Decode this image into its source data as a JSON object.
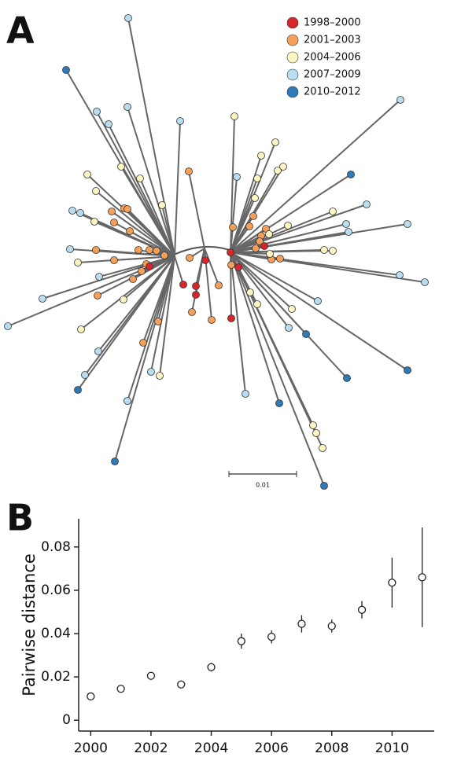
{
  "panel_a": {
    "label": "A",
    "legend": [
      {
        "name": "1998–2000",
        "color": "#d7262b"
      },
      {
        "name": "2001–2003",
        "color": "#f5a05a"
      },
      {
        "name": "2004–2006",
        "color": "#fdf6c3"
      },
      {
        "name": "2007–2009",
        "color": "#b8ddf0"
      },
      {
        "name": "2010–2012",
        "color": "#2f79b7"
      }
    ],
    "scale_label": "0.01"
  },
  "chart_data": {
    "type": "scatter",
    "label": "B",
    "y_label": "Pairwise distance",
    "x": [
      2000,
      2001,
      2002,
      2003,
      2004,
      2005,
      2006,
      2007,
      2008,
      2009,
      2010,
      2011
    ],
    "values": [
      0.011,
      0.0145,
      0.0205,
      0.0165,
      0.0245,
      0.0365,
      0.0385,
      0.0445,
      0.0435,
      0.051,
      0.0635,
      0.066
    ],
    "errors": [
      0.001,
      0.0015,
      0.0015,
      0.0015,
      0.002,
      0.0035,
      0.003,
      0.004,
      0.003,
      0.004,
      0.0115,
      0.023
    ],
    "color": "#222222",
    "xlim": [
      1999.6,
      2011.4
    ],
    "ylim": [
      -0.005,
      0.093
    ],
    "xticks": [
      2000,
      2002,
      2004,
      2006,
      2008,
      2010
    ],
    "yticks": [
      0,
      0.02,
      0.04,
      0.06,
      0.08
    ]
  }
}
